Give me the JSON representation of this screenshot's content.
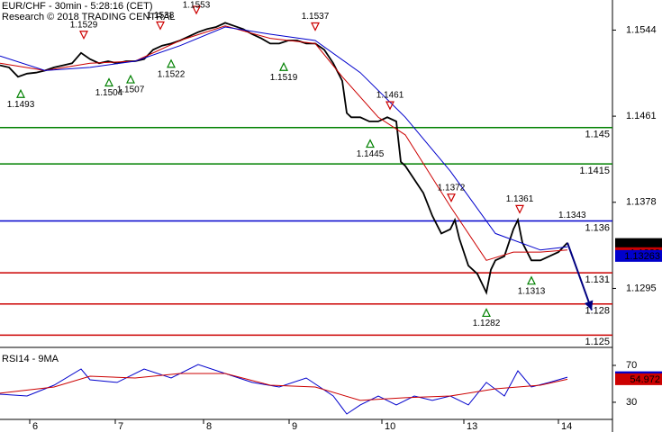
{
  "chart_data": [
    {
      "type": "line",
      "title": "EUR/CHF - 30min - 5:28:16 (CET)",
      "subtitle": "Research © 2018 TRADING CENTRAL",
      "xlim": [
        0,
        680
      ],
      "ylim": [
        1.1239,
        1.1573
      ],
      "yticks": [
        1.1295,
        1.1378,
        1.1461,
        1.1544
      ],
      "series": [
        {
          "color": "#000000",
          "x": [
            0,
            10,
            20,
            30,
            40,
            50,
            60,
            70,
            80,
            90,
            100,
            110,
            120,
            130,
            140,
            150,
            160,
            170,
            180,
            190,
            200,
            210,
            220,
            230,
            240,
            250,
            260,
            270,
            280,
            290,
            300,
            310,
            320,
            330,
            340,
            350,
            360,
            370,
            380,
            385,
            390,
            400,
            410,
            420,
            430,
            440,
            445,
            450,
            460,
            470,
            480,
            490,
            500,
            505,
            510,
            520,
            530,
            540,
            545,
            550,
            560,
            570,
            575,
            580,
            590,
            600,
            610,
            620,
            630
          ],
          "values": [
            1.151,
            1.1508,
            1.1499,
            1.1502,
            1.1503,
            1.1505,
            1.1508,
            1.151,
            1.1512,
            1.1522,
            1.1516,
            1.1512,
            1.1514,
            1.1512,
            1.1514,
            1.1514,
            1.1516,
            1.1525,
            1.1529,
            1.1531,
            1.1534,
            1.1538,
            1.1542,
            1.1545,
            1.1547,
            1.1551,
            1.1548,
            1.1545,
            1.154,
            1.1536,
            1.1531,
            1.1531,
            1.1534,
            1.1534,
            1.1531,
            1.1531,
            1.1525,
            1.1512,
            1.1495,
            1.1464,
            1.146,
            1.146,
            1.1456,
            1.1456,
            1.146,
            1.1456,
            1.1417,
            1.1413,
            1.14,
            1.1387,
            1.1365,
            1.1348,
            1.1352,
            1.1361,
            1.1343,
            1.1317,
            1.1309,
            1.1291,
            1.1313,
            1.1322,
            1.1326,
            1.1352,
            1.1361,
            1.1339,
            1.1322,
            1.1322,
            1.1326,
            1.133,
            1.1339
          ]
        },
        {
          "color": "#cc0000",
          "x": [
            0,
            50,
            100,
            150,
            200,
            250,
            300,
            350,
            380,
            420,
            450,
            500,
            540,
            570,
            600,
            630
          ],
          "values": [
            1.1512,
            1.1505,
            1.1512,
            1.1514,
            1.1534,
            1.1548,
            1.1536,
            1.1531,
            1.1499,
            1.146,
            1.1443,
            1.1374,
            1.1322,
            1.133,
            1.133,
            1.1332
          ]
        },
        {
          "color": "#0000cc",
          "x": [
            0,
            50,
            100,
            150,
            200,
            250,
            300,
            350,
            400,
            450,
            500,
            550,
            600,
            630
          ],
          "values": [
            1.1519,
            1.1505,
            1.1508,
            1.1514,
            1.1529,
            1.1547,
            1.154,
            1.1534,
            1.1503,
            1.146,
            1.1408,
            1.1348,
            1.1332,
            1.1335
          ]
        }
      ],
      "levels": [
        {
          "value": 1.145,
          "color": "#008000"
        },
        {
          "value": 1.1415,
          "color": "#008000"
        },
        {
          "value": 1.136,
          "color": "#0000cc"
        },
        {
          "value": 1.131,
          "color": "#cc0000"
        },
        {
          "value": 1.128,
          "color": "#cc0000"
        },
        {
          "value": 1.125,
          "color": "#cc0000"
        }
      ],
      "annotations": [
        {
          "x": 23,
          "value": 1.1493,
          "kind": "low"
        },
        {
          "x": 93,
          "value": 1.1529,
          "kind": "high"
        },
        {
          "x": 121,
          "value": 1.1504,
          "kind": "low"
        },
        {
          "x": 145,
          "value": 1.1507,
          "kind": "low"
        },
        {
          "x": 178,
          "value": 1.1538,
          "kind": "high"
        },
        {
          "x": 190,
          "value": 1.1522,
          "kind": "low"
        },
        {
          "x": 218,
          "value": 1.1553,
          "kind": "high"
        },
        {
          "x": 315,
          "value": 1.1519,
          "kind": "low"
        },
        {
          "x": 350,
          "value": 1.1537,
          "kind": "high"
        },
        {
          "x": 411,
          "value": 1.1445,
          "kind": "low"
        },
        {
          "x": 433,
          "value": 1.1461,
          "kind": "high"
        },
        {
          "x": 501,
          "value": 1.1372,
          "kind": "high"
        },
        {
          "x": 540,
          "value": 1.1282,
          "kind": "low"
        },
        {
          "x": 577,
          "value": 1.1361,
          "kind": "high"
        },
        {
          "x": 590,
          "value": 1.1313,
          "kind": "low"
        }
      ],
      "pivot_label": 1.1343,
      "forecast": {
        "color": "#000080",
        "x": [
          630,
          657
        ],
        "values": [
          1.1339,
          1.1274
        ]
      },
      "last_values": [
        {
          "value": 1.13378,
          "color": "#000000"
        },
        {
          "value": 1.1329,
          "color": "#cc0000"
        },
        {
          "value": 1.13263,
          "color": "#0000cc"
        }
      ]
    },
    {
      "type": "line",
      "title": "RSI14 - 9MA",
      "xlim": [
        0,
        680
      ],
      "xticks": [
        {
          "value": 33,
          "label": "6"
        },
        {
          "value": 128,
          "label": "7"
        },
        {
          "value": 226,
          "label": "8"
        },
        {
          "value": 321,
          "label": "9"
        },
        {
          "value": 424,
          "label": "10"
        },
        {
          "value": 515,
          "label": "13"
        },
        {
          "value": 620,
          "label": "14"
        }
      ],
      "ylim": [
        12.4,
        85.6
      ],
      "yticks": [
        30,
        70
      ],
      "series": [
        {
          "color": "#0000cc",
          "x": [
            0,
            30,
            60,
            90,
            100,
            130,
            160,
            190,
            220,
            250,
            280,
            310,
            340,
            370,
            385,
            400,
            420,
            440,
            460,
            480,
            500,
            520,
            540,
            560,
            575,
            590,
            610,
            630
          ],
          "values": [
            38.8,
            36.8,
            48.5,
            66.1,
            54.4,
            51.5,
            66.1,
            56.3,
            71.0,
            61.2,
            51.5,
            46.6,
            56.3,
            36.8,
            17.3,
            27.1,
            36.8,
            27.1,
            36.8,
            32.0,
            36.8,
            27.1,
            51.5,
            36.8,
            64.1,
            46.6,
            51.5,
            57.2
          ]
        },
        {
          "color": "#cc0000",
          "x": [
            0,
            60,
            100,
            150,
            200,
            250,
            300,
            350,
            400,
            450,
            500,
            550,
            600,
            630
          ],
          "values": [
            39.8,
            46.6,
            58.3,
            56.3,
            61.2,
            61.2,
            48.5,
            46.6,
            32.0,
            34.9,
            36.8,
            44.6,
            48.5,
            55.0
          ]
        }
      ],
      "last_values": [
        {
          "value": 57.1692,
          "color": "#0000cc"
        },
        {
          "value": 54.972,
          "color": "#cc0000"
        }
      ]
    }
  ]
}
